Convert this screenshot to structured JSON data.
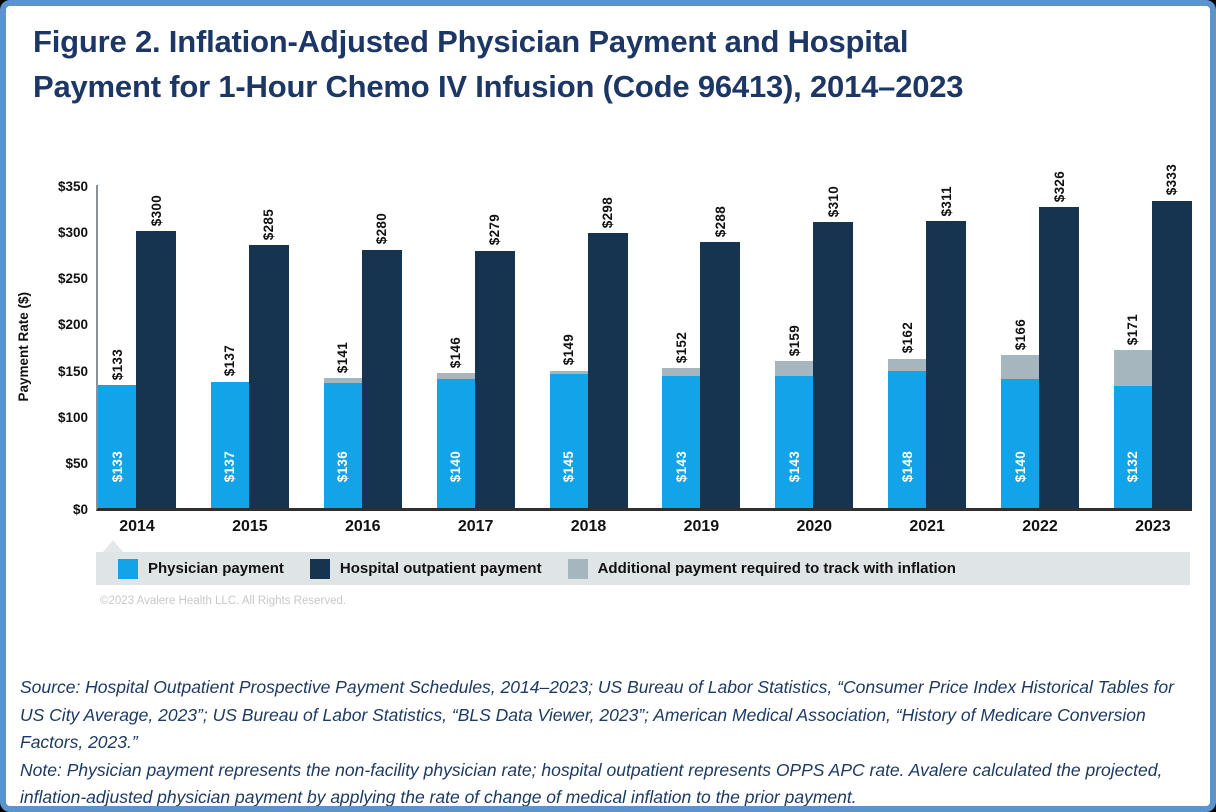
{
  "window": {
    "border_color": "#5b94cc",
    "background": "#ffffff"
  },
  "title_lines": [
    "Figure 2. Inflation-Adjusted Physician Payment and Hospital",
    "Payment for 1-Hour Chemo IV Infusion (Code 96413), 2014–2023"
  ],
  "title_color": "#1c3766",
  "chart_data": {
    "type": "bar",
    "categories": [
      "2014",
      "2015",
      "2016",
      "2017",
      "2018",
      "2019",
      "2020",
      "2021",
      "2022",
      "2023"
    ],
    "series": [
      {
        "name": "Physician payment",
        "color": "#12a3e9",
        "values": [
          133,
          137,
          136,
          140,
          145,
          143,
          143,
          148,
          140,
          132
        ]
      },
      {
        "name": "Additional payment required to track with inflation",
        "color": "#a6b6bf",
        "values": [
          0,
          0,
          5,
          6,
          4,
          9,
          16,
          14,
          26,
          39
        ]
      },
      {
        "name": "Hospital outpatient payment",
        "color": "#16334f",
        "values": [
          300,
          285,
          280,
          279,
          298,
          288,
          310,
          311,
          326,
          333
        ]
      }
    ],
    "stack_total_labels": [
      133,
      137,
      141,
      146,
      149,
      152,
      159,
      162,
      166,
      171
    ],
    "value_label_prefix": "$",
    "ylabel": "Payment Rate ($)",
    "yticks": [
      0,
      50,
      100,
      150,
      200,
      250,
      300,
      350
    ],
    "ylim": [
      0,
      350
    ],
    "grid": false,
    "legend_position": "bottom"
  },
  "legend": {
    "band_color": "#dfe4e7",
    "items": [
      {
        "label": "Physician payment",
        "color": "#12a3e9"
      },
      {
        "label": "Hospital outpatient payment",
        "color": "#16334f"
      },
      {
        "label": "Additional payment required to track with inflation",
        "color": "#a6b6bf"
      }
    ]
  },
  "copyright": "©2023 Avalere Health LLC.  All Rights Reserved.",
  "footnotes": {
    "source": "Source: Hospital Outpatient Prospective Payment Schedules, 2014–2023; US Bureau of Labor Statistics, “Consumer Price Index Historical Tables for US City Average, 2023”; US Bureau of Labor Statistics, “BLS Data Viewer, 2023”; American Medical Association, “History of Medicare Conversion Factors, 2023.”",
    "note": "Note: Physician payment represents the non-facility physician rate; hospital outpatient represents OPPS APC rate. Avalere calculated the projected, inflation-adjusted physician payment by applying the rate of change of medical inflation to the prior payment."
  }
}
